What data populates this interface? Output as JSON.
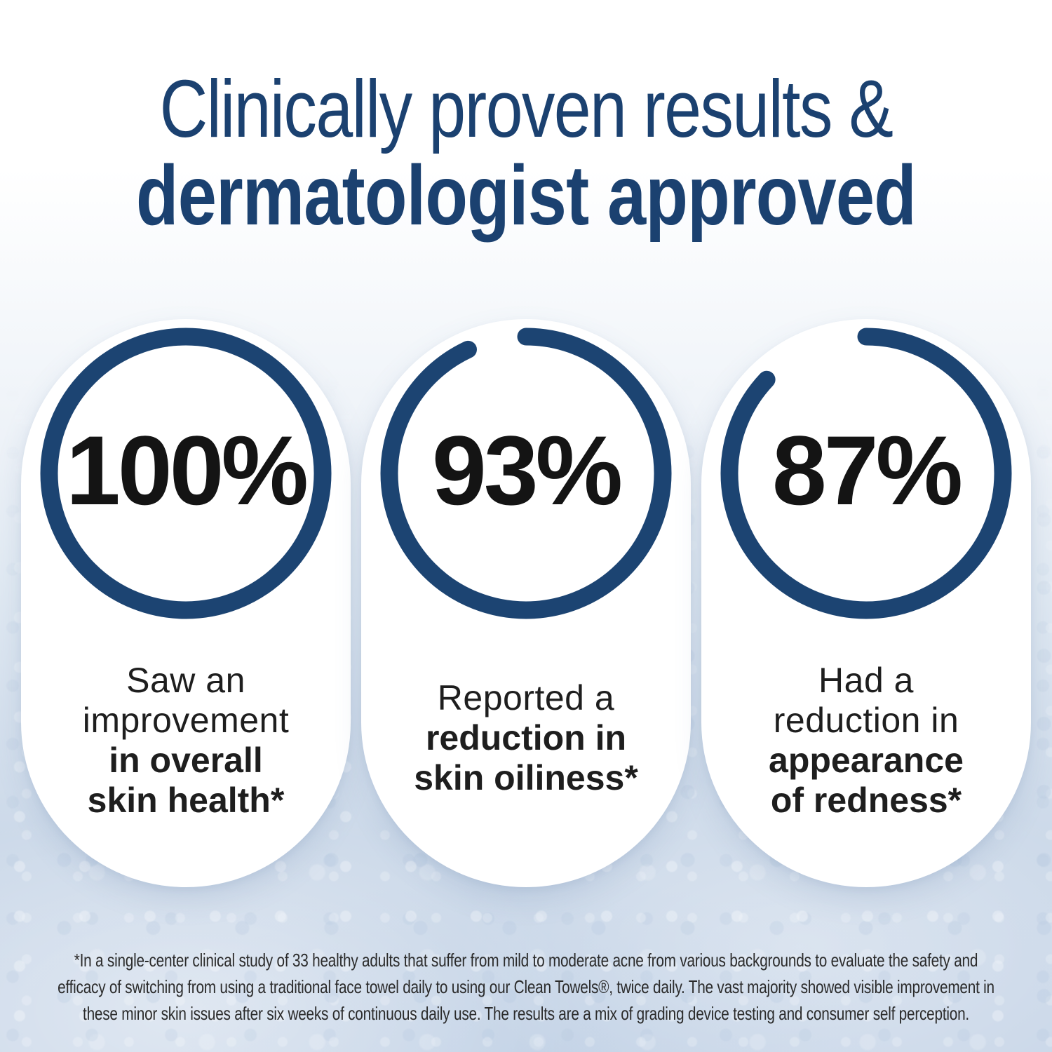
{
  "title": {
    "line1": "Clinically proven results &",
    "line2": "dermatologist approved"
  },
  "cards": [
    {
      "percent": "100%",
      "value": 100,
      "lines": [
        {
          "text": "Saw an",
          "bold": false
        },
        {
          "text": "improvement",
          "bold": false
        },
        {
          "text": "in overall",
          "bold": true
        },
        {
          "text": "skin health*",
          "bold": true
        }
      ]
    },
    {
      "percent": "93%",
      "value": 93,
      "lines": [
        {
          "text": "Reported a",
          "bold": false
        },
        {
          "text": "reduction in",
          "bold": true
        },
        {
          "text": "skin oiliness*",
          "bold": true
        }
      ]
    },
    {
      "percent": "87%",
      "value": 87,
      "lines": [
        {
          "text": "Had a",
          "bold": false
        },
        {
          "text": "reduction in",
          "bold": false
        },
        {
          "text": "appearance",
          "bold": true
        },
        {
          "text": "of redness*",
          "bold": true
        }
      ]
    }
  ],
  "footnote": {
    "lines": [
      "*In a single-center clinical study of 33 healthy adults that suffer from mild to moderate acne from various backgrounds to evaluate the safety and",
      "efficacy of switching from using a traditional face towel daily to using our Clean Towels®, twice daily. The vast majority showed visible improvement in",
      "these minor skin issues after six weeks of continuous daily use. The results are a mix of grading device testing and consumer self perception."
    ]
  },
  "colors": {
    "title_navy": "#1b4170",
    "ring_navy": "#1c4472",
    "percent_black": "#141414",
    "body_text": "#1e1e1e",
    "card_white": "#ffffff",
    "bg_bottom_blue": "#cbd8e9"
  },
  "chart_data": {
    "type": "pie",
    "variant": "progress-rings",
    "title": "Clinically proven results & dermatologist approved",
    "value_format": "percent",
    "legend_position": "below-each-ring",
    "series": [
      {
        "name": "Saw an improvement in overall skin health*",
        "value": 100
      },
      {
        "name": "Reported a reduction in skin oiliness*",
        "value": 93
      },
      {
        "name": "Had a reduction in appearance of redness*",
        "value": 87
      }
    ],
    "ring_color": "#1c4472",
    "value_color": "#141414"
  }
}
